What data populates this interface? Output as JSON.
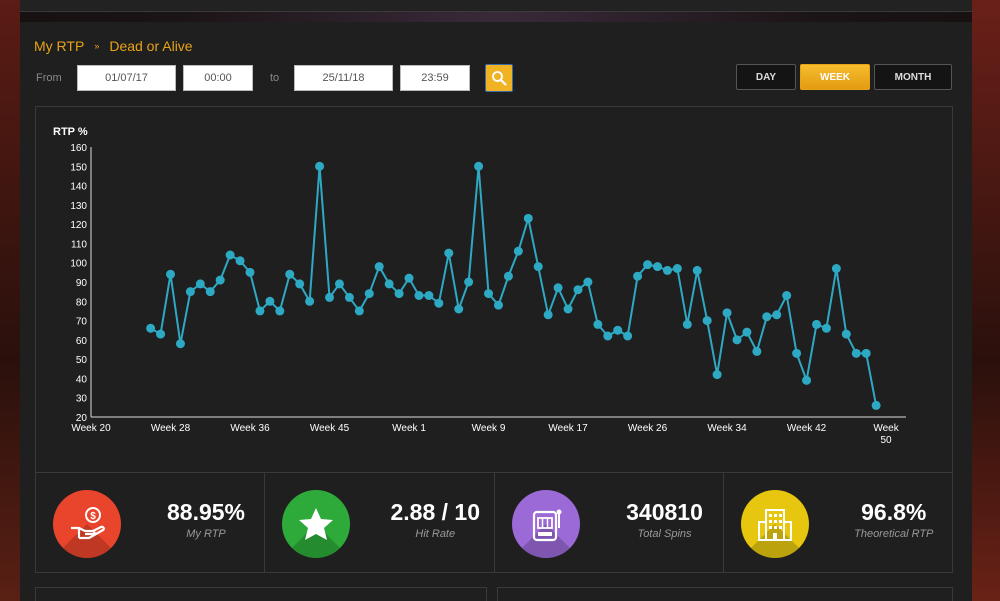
{
  "breadcrumb": {
    "root": "My RTP",
    "game": "Dead or Alive"
  },
  "filters": {
    "from_label": "From",
    "from_date": "01/07/17",
    "from_time": "00:00",
    "to_label": "to",
    "to_date": "25/11/18",
    "to_time": "23:59"
  },
  "period_buttons": [
    {
      "label": "DAY",
      "active": false
    },
    {
      "label": "WEEK",
      "active": true
    },
    {
      "label": "MONTH",
      "active": false
    }
  ],
  "chart_data": {
    "type": "line",
    "ylabel": "RTP %",
    "ylim": [
      20,
      160
    ],
    "yticks": [
      20,
      30,
      40,
      50,
      60,
      70,
      80,
      90,
      100,
      110,
      120,
      130,
      140,
      150,
      160
    ],
    "xlim": [
      20,
      101
    ],
    "xticks": [
      {
        "x": 20,
        "label": "Week 20"
      },
      {
        "x": 28,
        "label": "Week 28"
      },
      {
        "x": 36,
        "label": "Week 36"
      },
      {
        "x": 44,
        "label": "Week 45"
      },
      {
        "x": 52,
        "label": "Week 1"
      },
      {
        "x": 60,
        "label": "Week 9"
      },
      {
        "x": 68,
        "label": "Week 17"
      },
      {
        "x": 76,
        "label": "Week 26"
      },
      {
        "x": 84,
        "label": "Week 34"
      },
      {
        "x": 92,
        "label": "Week 42"
      },
      {
        "x": 100,
        "label": "Week 50"
      }
    ],
    "line_color": "#2ea9c4",
    "series": [
      {
        "x": [
          26,
          27,
          28,
          29,
          30,
          31,
          32,
          33,
          34,
          35,
          36,
          37,
          38,
          39,
          40,
          41,
          42,
          43,
          44,
          45,
          46,
          47,
          48,
          49,
          50,
          51,
          52,
          53,
          54,
          55,
          56,
          57,
          58,
          59,
          60,
          61,
          62,
          63,
          64,
          65,
          66,
          67,
          68,
          69,
          70,
          71,
          72,
          73,
          74,
          75,
          76,
          77,
          78,
          79,
          80,
          81,
          82,
          83,
          84,
          85,
          86,
          87,
          88,
          89,
          90,
          91,
          92,
          93,
          94,
          95,
          96,
          97,
          98
        ],
        "y": [
          66,
          63,
          94,
          58,
          85,
          89,
          85,
          91,
          104,
          101,
          95,
          75,
          80,
          75,
          94,
          89,
          80,
          150,
          82,
          89,
          82,
          75,
          84,
          98,
          89,
          84,
          92,
          83,
          83,
          79,
          105,
          76,
          90,
          150,
          84,
          78,
          93,
          106,
          123,
          98,
          73,
          87,
          76,
          86,
          90,
          68,
          62,
          65,
          62,
          93,
          99,
          98,
          96,
          97,
          68,
          96,
          70,
          42,
          74,
          60,
          64,
          54,
          72,
          73,
          83,
          53,
          39,
          68,
          66,
          97,
          63,
          53,
          53
        ]
      }
    ],
    "extra_point": {
      "x": 99,
      "y": 26
    }
  },
  "stats": [
    {
      "value": "88.95%",
      "label": "My RTP",
      "color": "#e8452c",
      "icon": "money-hand-icon"
    },
    {
      "value": "2.88 / 10",
      "label": "Hit Rate",
      "color": "#2eaa3a",
      "icon": "star-icon"
    },
    {
      "value": "340810",
      "label": "Total Spins",
      "color": "#9b6ad6",
      "icon": "slot-machine-icon"
    },
    {
      "value": "96.8%",
      "label": "Theoretical RTP",
      "color": "#e6c60f",
      "icon": "building-icon"
    }
  ]
}
